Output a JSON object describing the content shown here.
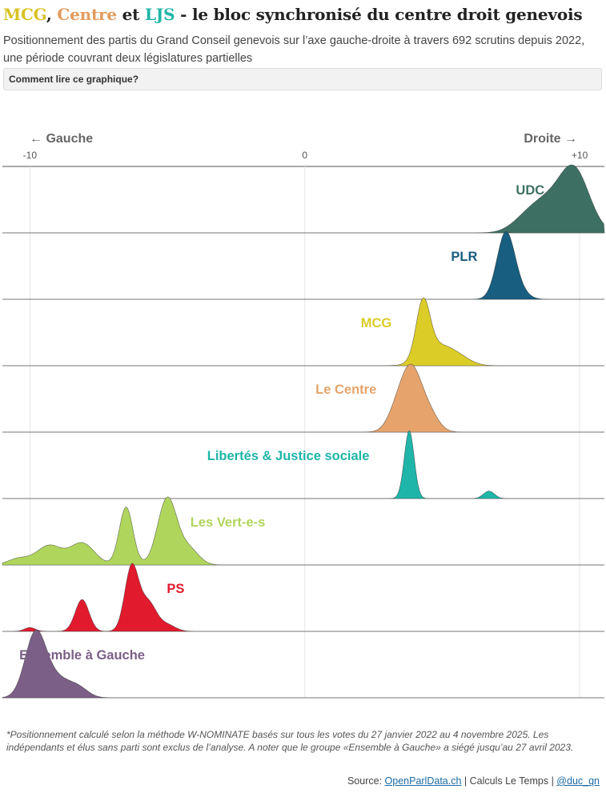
{
  "header": {
    "title_parts": [
      {
        "text": "MCG",
        "color": "#d8c224"
      },
      {
        "text": ", ",
        "color": "#222222"
      },
      {
        "text": "Centre",
        "color": "#e29b5c"
      },
      {
        "text": " et ",
        "color": "#222222"
      },
      {
        "text": "LJS",
        "color": "#1fb5a8"
      },
      {
        "text": " - le bloc synchronisé du centre droit genevois",
        "color": "#222222"
      }
    ],
    "subtitle": "Positionnement des partis du Grand Conseil genevois sur l’axe gauche-droite à travers 692 scrutins depuis 2022, une période couvrant deux législatures partielles",
    "howto_label": "Comment lire ce graphique?"
  },
  "chart_data": {
    "type": "area",
    "chart_kind": "ridgeline density",
    "x_range": [
      -11,
      10.9
    ],
    "x_ticks": [
      {
        "value": -10,
        "label": "-10"
      },
      {
        "value": 0,
        "label": "0"
      },
      {
        "value": 10,
        "label": "+10"
      }
    ],
    "direction_left": "← Gauche",
    "direction_right": "Droite →",
    "grid": true,
    "series": [
      {
        "name": "UDC",
        "color": "#3d7063",
        "label_at_x": 8.2,
        "components": [
          [
            9.8,
            0.55,
            1.0
          ],
          [
            8.7,
            0.6,
            0.45
          ],
          [
            7.9,
            0.5,
            0.12
          ]
        ]
      },
      {
        "name": "PLR",
        "color": "#185e80",
        "label_at_x": 5.8,
        "components": [
          [
            7.3,
            0.32,
            1.0
          ],
          [
            7.7,
            0.35,
            0.15
          ]
        ]
      },
      {
        "name": "MCG",
        "color": "#dccc27",
        "label_at_x": 2.6,
        "components": [
          [
            4.3,
            0.25,
            1.0
          ],
          [
            4.8,
            0.55,
            0.35
          ],
          [
            5.6,
            0.45,
            0.12
          ]
        ]
      },
      {
        "name": "Le Centre",
        "color": "#e6a46c",
        "label_at_x": 1.5,
        "components": [
          [
            3.9,
            0.35,
            1.0
          ],
          [
            3.4,
            0.35,
            0.45
          ],
          [
            4.5,
            0.35,
            0.35
          ]
        ]
      },
      {
        "name": "Libertés & Justice sociale",
        "color": "#1fb5a8",
        "label_at_x": -0.6,
        "components": [
          [
            3.8,
            0.18,
            1.0
          ],
          [
            6.7,
            0.2,
            0.11
          ]
        ]
      },
      {
        "name": "Les Vert-e-s",
        "color": "#b0d55c",
        "label_at_x": -2.8,
        "components": [
          [
            -5,
            0.35,
            0.52
          ],
          [
            -6.5,
            0.25,
            0.45
          ],
          [
            -8.1,
            0.45,
            0.17
          ],
          [
            -9.3,
            0.45,
            0.15
          ],
          [
            -10.4,
            0.4,
            0.05
          ],
          [
            -4.2,
            0.35,
            0.12
          ]
        ]
      },
      {
        "name": "PS",
        "color": "#e11a2e",
        "label_at_x": -4.7,
        "components": [
          [
            -6.3,
            0.25,
            1.0
          ],
          [
            -5.7,
            0.3,
            0.45
          ],
          [
            -8.1,
            0.25,
            0.5
          ],
          [
            -10,
            0.2,
            0.06
          ],
          [
            -5,
            0.3,
            0.1
          ]
        ]
      },
      {
        "name": "Ensemble à Gauche",
        "color": "#7b5f86",
        "label_at_x": -8.1,
        "components": [
          [
            -9.8,
            0.38,
            1.0
          ],
          [
            -8.2,
            0.35,
            0.12
          ],
          [
            -9,
            0.5,
            0.3
          ]
        ]
      }
    ]
  },
  "footer": {
    "footnote": "*Positionnement calculé selon la méthode W-NOMINATE basés sur tous les votes du 27 janvier 2022 au 4 novembre 2025. Les indépendants et élus sans parti sont exclus de l’analyse. A noter que le groupe «Ensemble à Gauche» a siégé jusqu’au 27 avril 2023.",
    "source_label": "Source: ",
    "source_link": "OpenParlData.ch",
    "separator": "|",
    "credit": "Calculs Le Temps",
    "author_link": "@duc_qn"
  }
}
